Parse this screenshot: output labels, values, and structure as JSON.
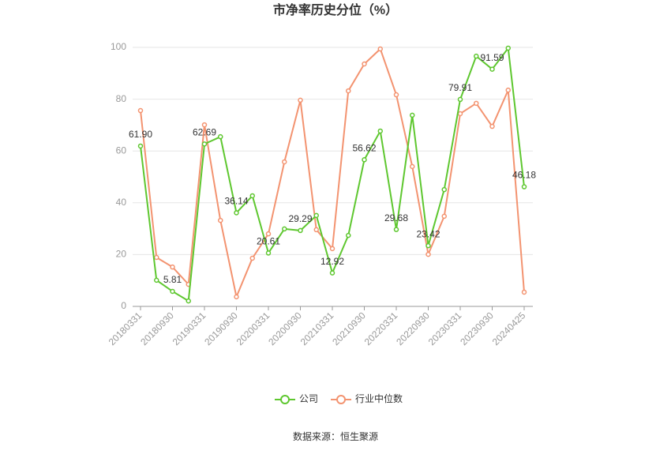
{
  "chart_data": {
    "type": "line",
    "title": "市净率历史分位（%）",
    "source": "数据来源：恒生聚源",
    "categories": [
      "20180331",
      null,
      "20180930",
      null,
      "20190331",
      null,
      "20190930",
      null,
      "20200331",
      null,
      "20200930",
      null,
      "20210331",
      null,
      "20210930",
      null,
      "20220331",
      null,
      "20220930",
      null,
      "20230331",
      null,
      "20230930",
      null,
      "20240425"
    ],
    "series": [
      {
        "name": "公司",
        "color": "#5ec72f",
        "values": [
          61.9,
          10.1,
          5.81,
          2.1,
          62.69,
          65.5,
          36.14,
          42.7,
          20.61,
          29.9,
          29.29,
          35.1,
          12.92,
          27.4,
          56.62,
          67.7,
          29.68,
          73.8,
          23.42,
          45.1,
          79.91,
          96.6,
          91.59,
          99.7,
          46.18
        ],
        "value_labels": [
          "61.90",
          null,
          "5.81",
          null,
          "62.69",
          null,
          "36.14",
          null,
          "20.61",
          null,
          "29.29",
          null,
          "12.92",
          null,
          "56.62",
          null,
          "29.68",
          null,
          "23.42",
          null,
          "79.91",
          null,
          "91.59",
          null,
          "46.18"
        ]
      },
      {
        "name": "行业中位数",
        "color": "#f39370",
        "values": [
          75.6,
          18.9,
          15.2,
          8.5,
          70.1,
          33.2,
          3.7,
          18.6,
          28.0,
          55.8,
          79.6,
          29.6,
          22.3,
          83.2,
          93.6,
          99.4,
          81.7,
          54.0,
          20.1,
          34.8,
          74.4,
          78.4,
          69.5,
          83.5,
          5.5
        ]
      }
    ],
    "ylim": [
      0,
      100
    ],
    "yticks": [
      0,
      20,
      40,
      60,
      80,
      100
    ],
    "grid": true
  }
}
